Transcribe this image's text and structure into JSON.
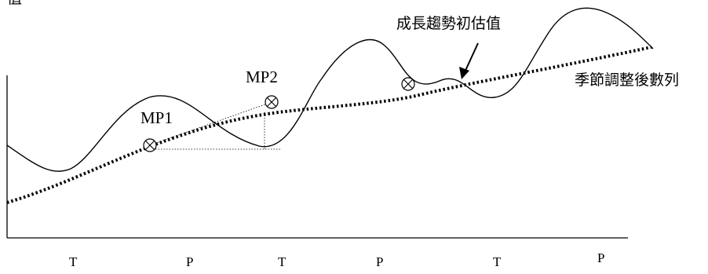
{
  "corner_label": "值",
  "labels": {
    "mp1": "MP1",
    "mp2": "MP2",
    "trend_initial": "成長趨勢初估值",
    "seasonally_adjusted": "季節調整後數列"
  },
  "x_ticks": [
    "T",
    "P",
    "T",
    "P",
    "T",
    "P"
  ],
  "colors": {
    "ink": "#000000",
    "background": "#ffffff"
  },
  "markers": [
    "circled-x-mp1",
    "circled-x-mp2",
    "circled-x-third"
  ]
}
